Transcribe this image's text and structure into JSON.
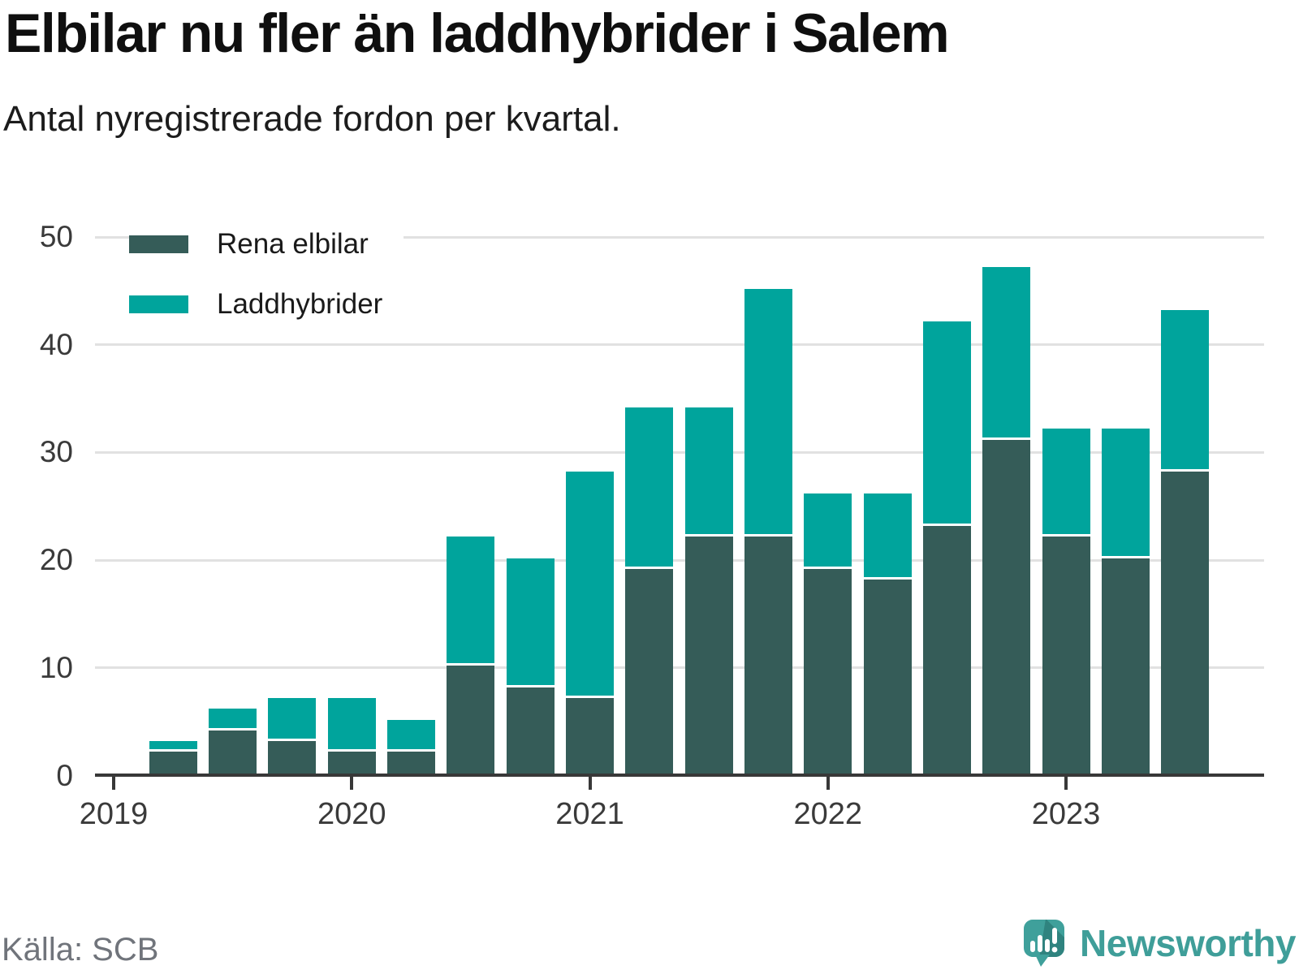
{
  "header": {
    "title": "Elbilar nu fler än laddhybrider i Salem",
    "subtitle": "Antal nyregistrerade fordon per kvartal."
  },
  "chart_data": {
    "type": "bar",
    "stacked": true,
    "categories": [
      "2019 Q2",
      "2019 Q3",
      "2019 Q4",
      "2020 Q1",
      "2020 Q2",
      "2020 Q3",
      "2020 Q4",
      "2021 Q1",
      "2021 Q2",
      "2021 Q3",
      "2021 Q4",
      "2022 Q1",
      "2022 Q2",
      "2022 Q3",
      "2022 Q4",
      "2023 Q1",
      "2023 Q2",
      "2023 Q3"
    ],
    "series": [
      {
        "name": "Rena elbilar",
        "color": "#355c58",
        "values": [
          2,
          4,
          3,
          2,
          2,
          10,
          8,
          7,
          19,
          22,
          22,
          19,
          18,
          23,
          31,
          22,
          20,
          28
        ]
      },
      {
        "name": "Laddhybrider",
        "color": "#00a49c",
        "values": [
          1,
          2,
          4,
          5,
          3,
          12,
          12,
          21,
          15,
          12,
          23,
          7,
          8,
          19,
          16,
          10,
          12,
          15
        ]
      }
    ],
    "totals": [
      3,
      6,
      7,
      7,
      5,
      22,
      20,
      28,
      34,
      34,
      45,
      26,
      26,
      42,
      47,
      32,
      32,
      43
    ],
    "x_tick_labels": [
      "2019",
      "2020",
      "2021",
      "2022",
      "2023"
    ],
    "y_tick_labels": [
      "0",
      "10",
      "20",
      "30",
      "40",
      "50"
    ],
    "ylim": [
      0,
      50
    ],
    "grid": true,
    "legend_position": "top-left",
    "separator_color": "#ffffff"
  },
  "footer": {
    "source": "Källa: SCB",
    "brand": "Newsworthy"
  },
  "colors": {
    "dark_series": "#355c58",
    "teal_series": "#00a49c",
    "gridline": "#e1e1e1",
    "axis": "#383838",
    "brand_teal": "#3f9e99",
    "brand_teal_dark": "#2f837f"
  }
}
